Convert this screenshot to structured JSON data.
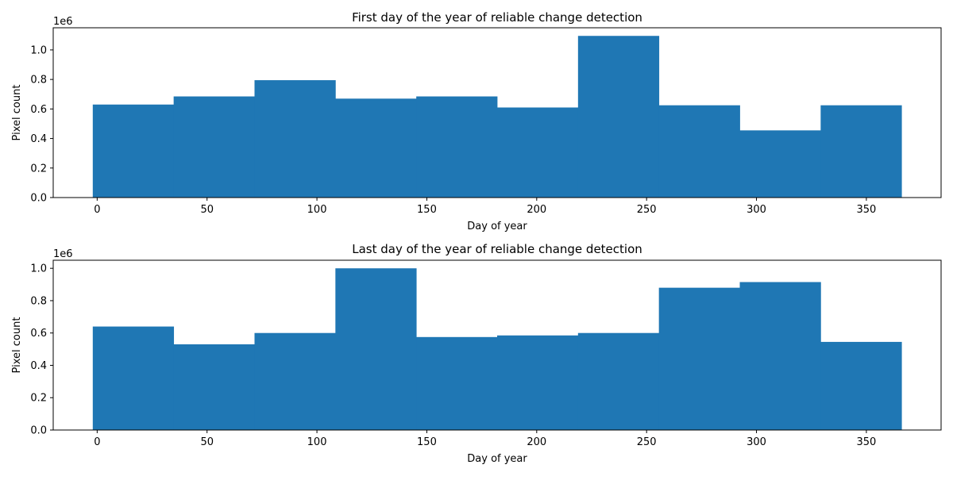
{
  "chart_data": [
    {
      "type": "bar",
      "title": "First day of the year of reliable change detection",
      "xlabel": "Day of year",
      "ylabel": "Pixel count",
      "y_offset_label": "1e6",
      "bin_edges": [
        -2,
        34.8,
        71.6,
        108.4,
        145.2,
        182,
        218.8,
        255.6,
        292.4,
        329.2,
        366
      ],
      "values": [
        630000,
        685000,
        795000,
        670000,
        685000,
        610000,
        1095000,
        625000,
        455000,
        625000
      ],
      "xlim": [
        -20,
        384
      ],
      "ylim": [
        0,
        1150000
      ],
      "xticks": [
        0,
        50,
        100,
        150,
        200,
        250,
        300,
        350
      ],
      "yticks": [
        0,
        200000,
        400000,
        600000,
        800000,
        1000000
      ],
      "ytick_labels": [
        "0.0",
        "0.2",
        "0.4",
        "0.6",
        "0.8",
        "1.0"
      ],
      "color": "#1f77b4",
      "grid": false
    },
    {
      "type": "bar",
      "title": "Last day of the year of reliable change detection",
      "xlabel": "Day of year",
      "ylabel": "Pixel count",
      "y_offset_label": "1e6",
      "bin_edges": [
        -2,
        34.8,
        71.6,
        108.4,
        145.2,
        182,
        218.8,
        255.6,
        292.4,
        329.2,
        366
      ],
      "values": [
        640000,
        530000,
        600000,
        1000000,
        575000,
        585000,
        600000,
        880000,
        915000,
        545000
      ],
      "xlim": [
        -20,
        384
      ],
      "ylim": [
        0,
        1050000
      ],
      "xticks": [
        0,
        50,
        100,
        150,
        200,
        250,
        300,
        350
      ],
      "yticks": [
        0,
        200000,
        400000,
        600000,
        800000,
        1000000
      ],
      "ytick_labels": [
        "0.0",
        "0.2",
        "0.4",
        "0.6",
        "0.8",
        "1.0"
      ],
      "color": "#1f77b4",
      "grid": false
    }
  ]
}
